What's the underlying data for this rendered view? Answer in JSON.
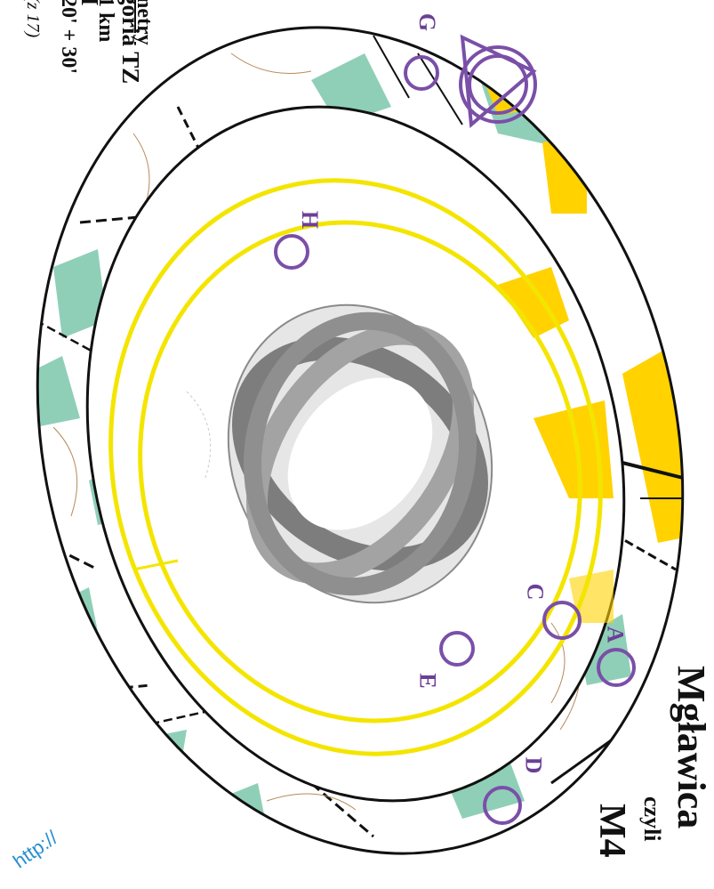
{
  "header": {
    "title": "Mgławica",
    "subtitle": "czyli",
    "code": "M4",
    "category_title": "goria TZ",
    "category_line2": "I"
  },
  "info": {
    "line1": "netry",
    "line2": "1 km",
    "line3": "20' + 30'",
    "line4": "(z 17)"
  },
  "footer": {
    "url_fragment": "http://"
  },
  "controls": [
    {
      "id": "A",
      "label": "A"
    },
    {
      "id": "C",
      "label": "C"
    },
    {
      "id": "D",
      "label": "D"
    },
    {
      "id": "E",
      "label": "E"
    },
    {
      "id": "G",
      "label": "G"
    },
    {
      "id": "H",
      "label": "H"
    }
  ],
  "colors": {
    "course_purple": "#7a4fa8",
    "forest_green": "#8fcfb8",
    "open_yellow": "#ffd200",
    "ring_yellow": "#f4e500",
    "url_blue": "#2a8fd0"
  },
  "icons": {
    "logo": "gray-interlocking-rings-logo",
    "start": "start-triangle-icon"
  }
}
